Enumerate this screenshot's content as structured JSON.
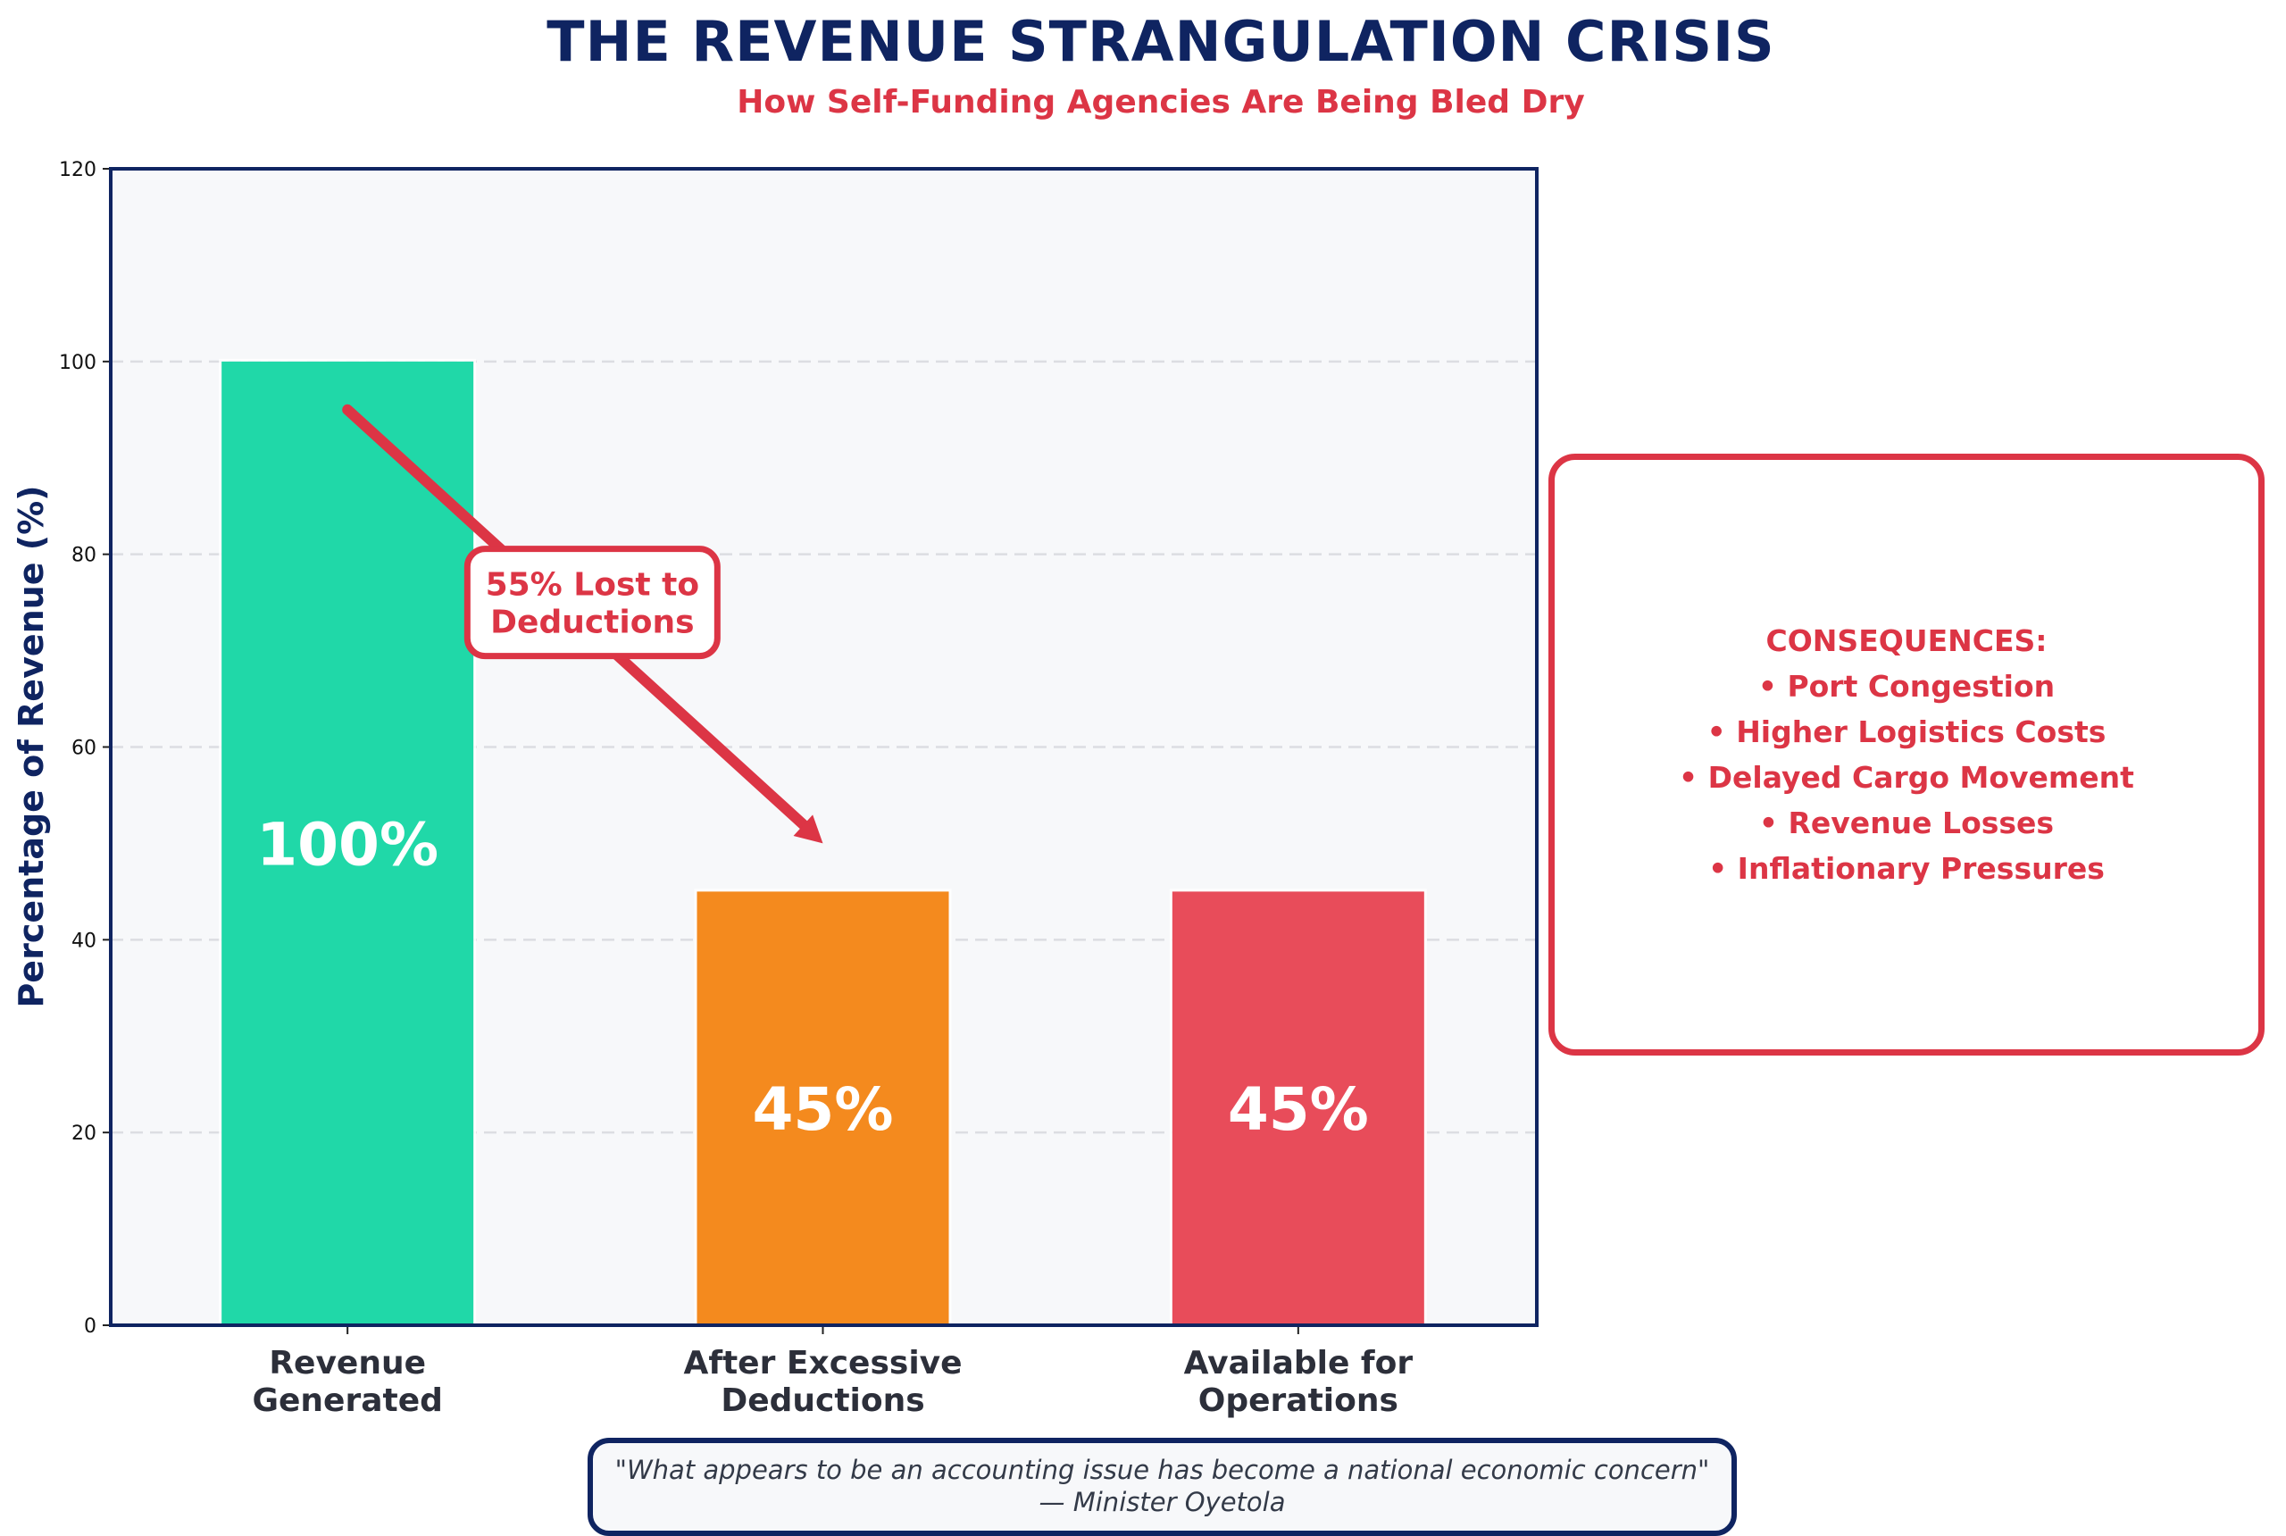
{
  "header": {
    "title": "THE REVENUE STRANGULATION CRISIS",
    "subtitle": "How Self-Funding Agencies Are Being Bled Dry"
  },
  "chart_data": {
    "type": "bar",
    "title": "THE REVENUE STRANGULATION CRISIS",
    "subtitle": "How Self-Funding Agencies Are Being Bled Dry",
    "categories": [
      "Revenue\nGenerated",
      "After Excessive\nDeductions",
      "Available for\nOperations"
    ],
    "category_lines": [
      [
        "Revenue",
        "Generated"
      ],
      [
        "After Excessive",
        "Deductions"
      ],
      [
        "Available for",
        "Operations"
      ]
    ],
    "values": [
      100,
      45,
      45
    ],
    "data_labels": [
      "100%",
      "45%",
      "45%"
    ],
    "bar_colors": [
      "#20d8a8",
      "#f48a1e",
      "#e84c5a"
    ],
    "xlabel": "",
    "ylabel": "Percentage of Revenue (%)",
    "ylim": [
      0,
      120
    ],
    "yticks": [
      0,
      20,
      40,
      60,
      80,
      100,
      120
    ],
    "grid": true,
    "annotation": {
      "text_lines": [
        "55% Lost to",
        "Deductions"
      ],
      "arrow_from": {
        "category_index": 0,
        "y": 95
      },
      "arrow_to": {
        "category_index": 1,
        "y": 50
      },
      "label_at": {
        "category_index_mid": 0.5,
        "y": 75
      }
    }
  },
  "consequences": {
    "heading": "CONSEQUENCES:",
    "items": [
      "• Port Congestion",
      "• Higher Logistics Costs",
      "• Delayed Cargo Movement",
      "• Revenue Losses",
      "• Inflationary Pressures"
    ]
  },
  "quote": {
    "text": "\"What appears to be an accounting issue has become a national economic concern\"",
    "attribution": "— Minister Oyetola"
  },
  "colors": {
    "navy": "#0f2461",
    "red": "#dc3545",
    "plot_bg": "#f7f8fa"
  }
}
